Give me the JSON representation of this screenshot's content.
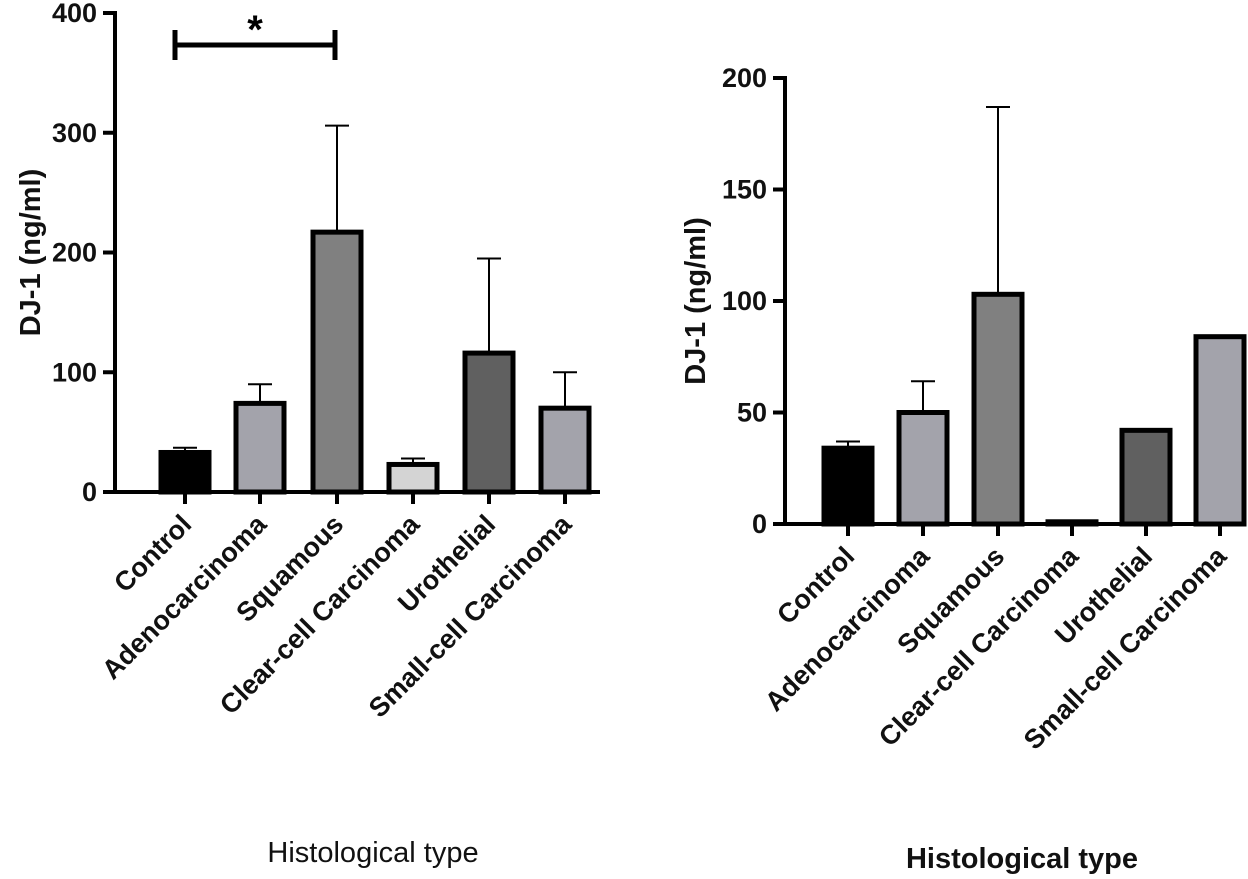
{
  "chart_data": [
    {
      "type": "bar",
      "title": "",
      "xlabel": "Histological type",
      "ylabel": "DJ-1 (ng/ml)",
      "ylim": [
        0,
        400
      ],
      "yticks": [
        "0",
        "100",
        "200",
        "300",
        "400"
      ],
      "categories": [
        "Control",
        "Adenocarcinoma",
        "Squamous",
        "Clear-cell Carcinoma",
        "Urothelial",
        "Small-cell Carcinoma"
      ],
      "values": [
        33,
        74,
        217,
        23,
        116,
        70
      ],
      "error_upper": [
        37,
        90,
        306,
        28,
        195,
        100
      ],
      "colors": [
        "#000000",
        "#a3a3ab",
        "#808080",
        "#d4d4d4",
        "#606060",
        "#a3a3ab"
      ],
      "annotations": [
        {
          "text": "*",
          "from": "Control",
          "to": "Squamous"
        }
      ],
      "grid": false
    },
    {
      "type": "bar",
      "title": "",
      "xlabel": "Histological type",
      "ylabel": "DJ-1 (ng/ml)",
      "ylim": [
        0,
        200
      ],
      "yticks": [
        "0",
        "50",
        "100",
        "150",
        "200"
      ],
      "categories": [
        "Control",
        "Adenocarcinoma",
        "Squamous",
        "Clear-cell Carcinoma",
        "Urothelial",
        "Small-cell Carcinoma"
      ],
      "values": [
        34,
        50,
        103,
        1,
        42,
        84
      ],
      "error_upper": [
        37,
        64,
        187,
        null,
        null,
        null
      ],
      "colors": [
        "#000000",
        "#a3a3ab",
        "#808080",
        "#d4d4d4",
        "#606060",
        "#a3a3ab"
      ],
      "grid": false
    }
  ]
}
